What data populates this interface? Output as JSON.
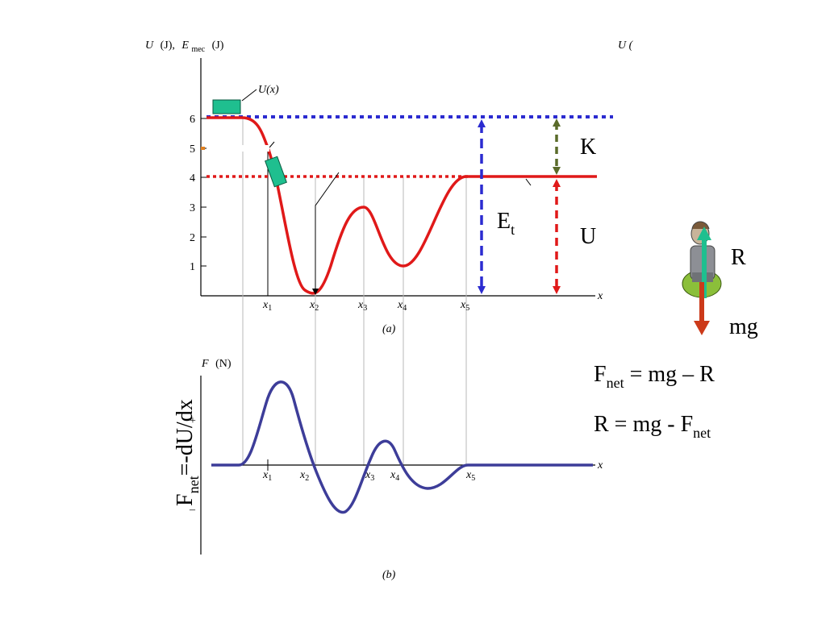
{
  "panel_a": {
    "ylabel_u": "U",
    "ylabel_u_unit": "(J),",
    "ylabel_e": "E",
    "ylabel_e_sub": "mec",
    "ylabel_e_unit": "(J)",
    "ylabel_right": "U (",
    "curve_label": "U(x)",
    "yticks": [
      "1",
      "2",
      "3",
      "4",
      "5",
      "6"
    ],
    "xlabels": [
      {
        "base": "x",
        "sub": "1"
      },
      {
        "base": "x",
        "sub": "2"
      },
      {
        "base": "x",
        "sub": "3"
      },
      {
        "base": "x",
        "sub": "4"
      },
      {
        "base": "x",
        "sub": "5"
      }
    ],
    "x_axis_label": "x",
    "caption": "(a)",
    "label_K": "K",
    "label_U": "U",
    "label_Et": "E",
    "label_Et_sub": "t",
    "colors": {
      "energy_line": "#2b2bd0",
      "potential_line": "#e01919",
      "curve": "#e01919",
      "kinetic_arrow": "#5a6b2a",
      "cart": "#1fbf8f"
    }
  },
  "panel_b": {
    "ylabel": "F",
    "ylabel_unit": "(N)",
    "plus": "+",
    "minus": "–",
    "xlabels": [
      {
        "base": "x",
        "sub": "1"
      },
      {
        "base": "x",
        "sub": "2"
      },
      {
        "base": "x",
        "sub": "3"
      },
      {
        "base": "x",
        "sub": "4"
      },
      {
        "base": "x",
        "sub": "5"
      }
    ],
    "x_axis_label": "x",
    "caption": "(b)",
    "rotated_label": "F",
    "rotated_label_sub": "net",
    "rotated_label_rest": "=-dU/dx",
    "colors": {
      "curve": "#3d3d99"
    }
  },
  "figure": {
    "label_R": "R",
    "label_mg": "mg",
    "colors": {
      "R_arrow": "#1fbf8f",
      "mg_arrow": "#cc3a1a"
    }
  },
  "equations": {
    "eq1_F": "F",
    "eq1_sub": "net",
    "eq1_rest": " = mg – R",
    "eq2_start": "R = mg - F",
    "eq2_sub": "net"
  }
}
